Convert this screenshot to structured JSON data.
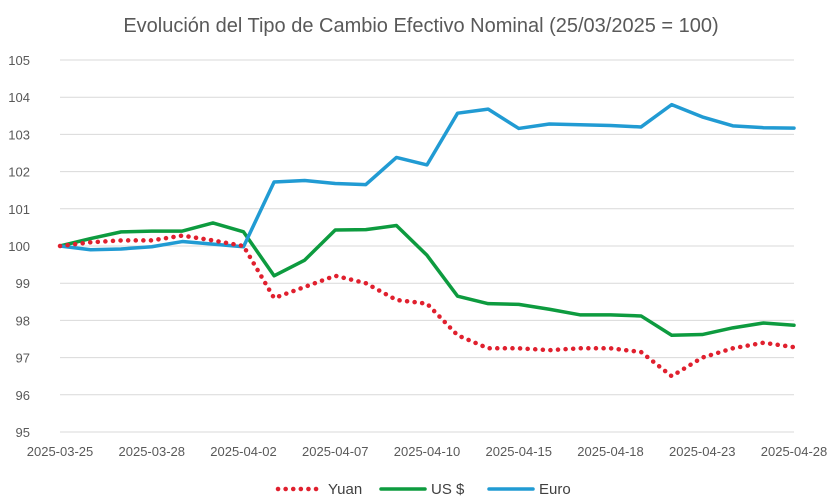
{
  "chart_data": {
    "type": "line",
    "title": "Evolución del Tipo de Cambio Efectivo Nominal (25/03/2025 = 100)",
    "xlabel": "",
    "ylabel": "",
    "ylim": [
      95,
      105
    ],
    "y_ticks": [
      95,
      96,
      97,
      98,
      99,
      100,
      101,
      102,
      103,
      104,
      105
    ],
    "x_tick_labels": [
      "2025-03-25",
      "2025-03-28",
      "2025-04-02",
      "2025-04-07",
      "2025-04-10",
      "2025-04-15",
      "2025-04-18",
      "2025-04-23",
      "2025-04-28"
    ],
    "grid": true,
    "legend_position": "bottom",
    "x": [
      "2025-03-25",
      "2025-03-26",
      "2025-03-27",
      "2025-03-28",
      "2025-03-31",
      "2025-04-01",
      "2025-04-02",
      "2025-04-03",
      "2025-04-04",
      "2025-04-07",
      "2025-04-08",
      "2025-04-09",
      "2025-04-10",
      "2025-04-11",
      "2025-04-14",
      "2025-04-15",
      "2025-04-16",
      "2025-04-17",
      "2025-04-18",
      "2025-04-21",
      "2025-04-22",
      "2025-04-23",
      "2025-04-24",
      "2025-04-25",
      "2025-04-28"
    ],
    "series": [
      {
        "name": "Yuan",
        "color": "#e0202e",
        "style": "dotted",
        "values": [
          100.0,
          100.1,
          100.15,
          100.15,
          100.28,
          100.15,
          100.0,
          98.6,
          98.9,
          99.2,
          99.0,
          98.55,
          98.45,
          97.6,
          97.25,
          97.25,
          97.2,
          97.25,
          97.25,
          97.15,
          96.5,
          97.0,
          97.25,
          97.4,
          97.28
        ]
      },
      {
        "name": "US $",
        "color": "#0d9b3f",
        "style": "solid",
        "values": [
          100.0,
          100.2,
          100.38,
          100.4,
          100.4,
          100.62,
          100.38,
          99.2,
          99.62,
          100.43,
          100.44,
          100.55,
          99.75,
          98.65,
          98.45,
          98.43,
          98.3,
          98.15,
          98.15,
          98.12,
          97.6,
          97.62,
          97.8,
          97.93,
          97.87
        ]
      },
      {
        "name": "Euro",
        "color": "#219bd3",
        "style": "solid",
        "values": [
          100.0,
          99.9,
          99.92,
          99.98,
          100.12,
          100.05,
          99.98,
          101.72,
          101.76,
          101.68,
          101.65,
          102.38,
          102.18,
          103.57,
          103.68,
          103.16,
          103.28,
          103.26,
          103.24,
          103.2,
          103.8,
          103.47,
          103.23,
          103.18,
          103.17
        ]
      }
    ]
  }
}
